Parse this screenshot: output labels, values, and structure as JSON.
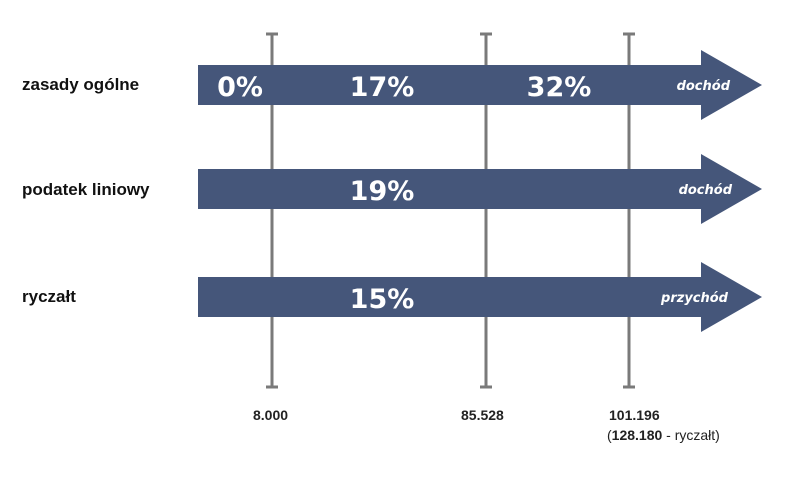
{
  "colors": {
    "arrow": "#45567a",
    "tick": "#7a7a7a",
    "arrow_text": "#ffffff"
  },
  "rows": [
    {
      "label": "zasady ogólne",
      "rates": [
        "0%",
        "17%",
        "32%"
      ],
      "base": "dochód"
    },
    {
      "label": "podatek liniowy",
      "rates": [
        "19%"
      ],
      "base": "dochód"
    },
    {
      "label": "ryczałt",
      "rates": [
        "15%"
      ],
      "base": "przychód"
    }
  ],
  "thresholds": [
    {
      "value": "8.000"
    },
    {
      "value": "85.528"
    },
    {
      "value": "101.196",
      "note_value": "128.180",
      "note_suffix": " - ryczałt)"
    }
  ]
}
